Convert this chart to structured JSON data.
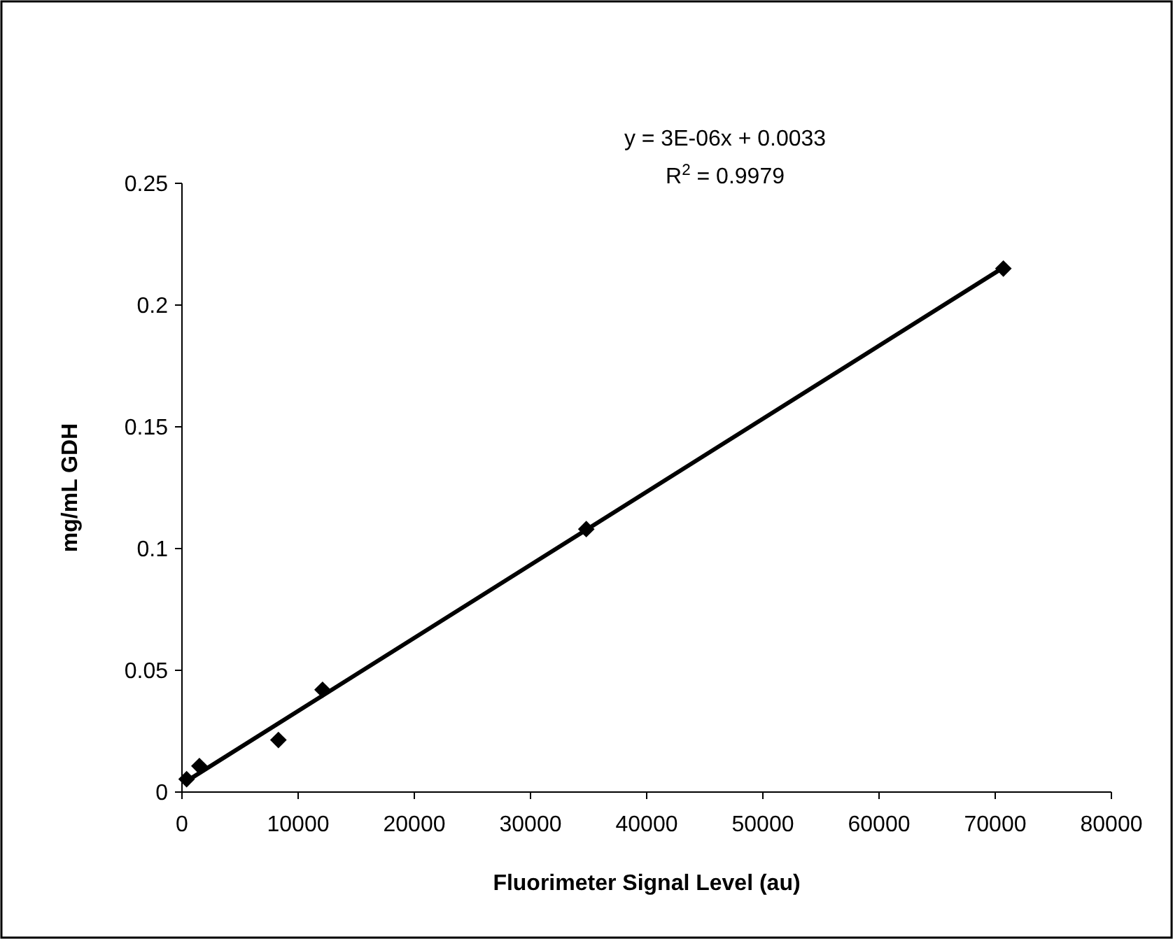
{
  "chart_data": {
    "type": "scatter",
    "xlabel": "Fluorimeter Signal Level (au)",
    "ylabel": "mg/mL GDH",
    "annotations": [
      "y = 3E-06x + 0.0033",
      "R$^{2}$ = 0.9979"
    ],
    "x": [
      400,
      1500,
      8300,
      12100,
      34800,
      70700
    ],
    "xlim": [
      0,
      80000
    ],
    "xticks": [
      0,
      10000,
      20000,
      30000,
      40000,
      50000,
      60000,
      70000,
      80000
    ],
    "ylim": [
      0,
      0.25
    ],
    "yticks": [
      0,
      0.05,
      0.1,
      0.15,
      0.2,
      0.25
    ],
    "grid": false,
    "series": [
      {
        "color": "#000000",
        "marker": "diamond",
        "values": [
          0.0053,
          0.0107,
          0.0214,
          0.042,
          0.108,
          0.215
        ]
      },
      {
        "type": "line",
        "color": "#000000",
        "x": [
          400,
          70700
        ],
        "values": [
          0.0045,
          0.2154
        ],
        "line_style": "solid"
      }
    ]
  }
}
